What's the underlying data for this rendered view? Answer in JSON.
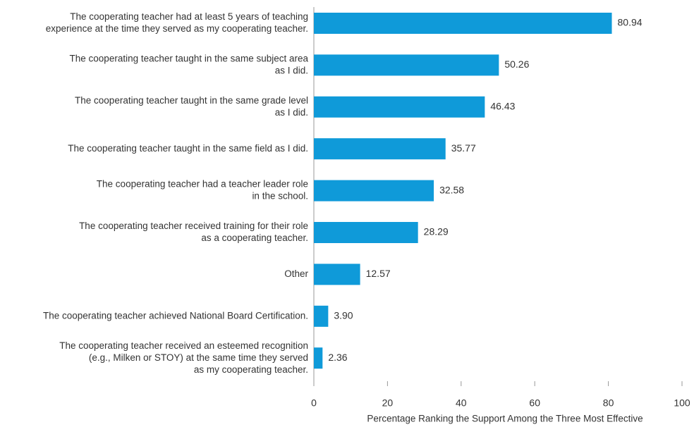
{
  "chart_data": {
    "type": "bar",
    "orientation": "horizontal",
    "categories": [
      [
        "The cooperating teacher had at least 5 years of teaching",
        "experience at the time they served as my cooperating teacher."
      ],
      [
        "The cooperating teacher taught in the same subject area",
        "as I did."
      ],
      [
        "The cooperating teacher taught in the same grade level",
        "as I did."
      ],
      [
        "The cooperating teacher taught in the same field as I did."
      ],
      [
        "The cooperating teacher had a teacher leader role",
        "in the school."
      ],
      [
        "The cooperating teacher received training for their role",
        "as a cooperating teacher."
      ],
      [
        "Other"
      ],
      [
        "The cooperating teacher achieved National Board Certification."
      ],
      [
        "The cooperating teacher received an esteemed recognition",
        "(e.g., Milken or STOY) at the same time they served",
        "as my cooperating teacher."
      ]
    ],
    "values": [
      80.94,
      50.26,
      46.43,
      35.77,
      32.58,
      28.29,
      12.57,
      3.9,
      2.36
    ],
    "value_labels": [
      "80.94",
      "50.26",
      "46.43",
      "35.77",
      "32.58",
      "28.29",
      "12.57",
      "3.90",
      "2.36"
    ],
    "color": "#0f9ad9",
    "xlabel": "Percentage Ranking the Support Among the Three Most Effective",
    "xlim": [
      0,
      100
    ],
    "xticks": [
      0,
      20,
      40,
      60,
      80,
      100
    ]
  }
}
